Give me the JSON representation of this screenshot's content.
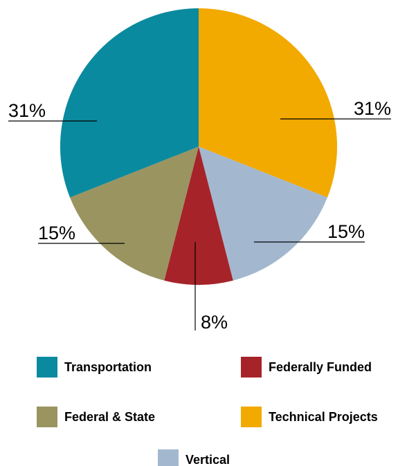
{
  "chart_data": {
    "type": "pie",
    "categories": [
      "Technical Projects",
      "Vertical",
      "Federally Funded",
      "Federal & State",
      "Transportation"
    ],
    "values": [
      31,
      15,
      8,
      15,
      31
    ],
    "value_labels": [
      "31%",
      "15%",
      "8%",
      "15%",
      "31%"
    ],
    "colors": [
      "#f2a900",
      "#a3b8cf",
      "#a6232a",
      "#9a9461",
      "#0a8a9e"
    ]
  }
}
